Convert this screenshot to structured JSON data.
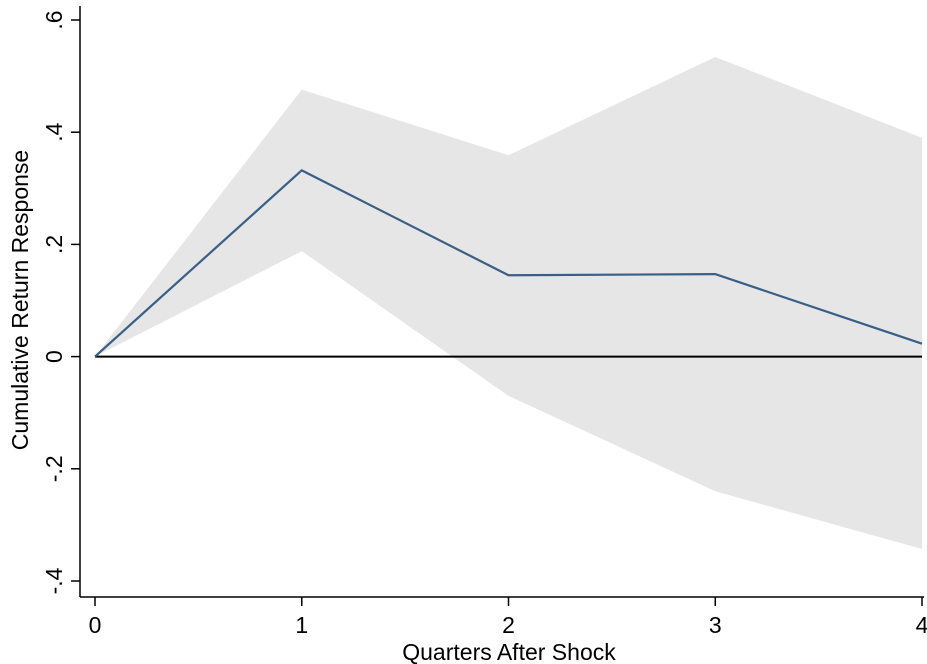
{
  "chart_data": {
    "type": "line",
    "title": "",
    "xlabel": "Quarters After Shock",
    "ylabel": "Cumulative Return Response",
    "x": [
      0,
      1,
      2,
      3,
      4
    ],
    "xticks": [
      "0",
      "1",
      "2",
      "3",
      "4"
    ],
    "xlim": [
      0,
      4
    ],
    "ylim": [
      -0.4,
      0.6
    ],
    "yticks": [
      -0.4,
      -0.2,
      0,
      0.2,
      0.4,
      0.6
    ],
    "ytick_labels": [
      "-.4",
      "-.2",
      "0",
      ".2",
      ".4",
      ".6"
    ],
    "series": [
      {
        "values": [
          0,
          0.332,
          0.145,
          0.147,
          0.023
        ]
      }
    ],
    "confidence_band": {
      "lower": [
        0,
        0.188,
        -0.07,
        -0.24,
        -0.343
      ],
      "upper": [
        0,
        0.476,
        0.359,
        0.534,
        0.39
      ]
    },
    "reference_line": 0,
    "grid": false,
    "colors": {
      "line": "#3a5f86",
      "band": "#e6e6e6",
      "reference": "#000000",
      "axis": "#000000"
    }
  }
}
